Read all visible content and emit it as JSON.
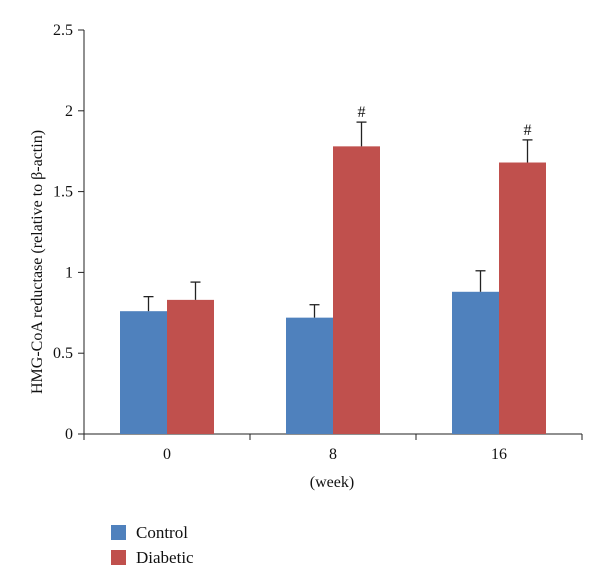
{
  "chart_data": {
    "type": "bar",
    "categories": [
      "0",
      "8",
      "16"
    ],
    "xlabel": "(week)",
    "ylabel": "HMG-CoA reductase (relative to β-actin)",
    "ylim": [
      0,
      2.5
    ],
    "yticks": [
      "0",
      "0.5",
      "1",
      "1.5",
      "2",
      "2.5"
    ],
    "series": [
      {
        "name": "Control",
        "color": "#4F81BD",
        "values": [
          0.76,
          0.72,
          0.88
        ],
        "errors": [
          0.09,
          0.08,
          0.13
        ],
        "annotations": [
          "",
          "",
          ""
        ]
      },
      {
        "name": "Diabetic",
        "color": "#C0504D",
        "values": [
          0.83,
          1.78,
          1.68
        ],
        "errors": [
          0.11,
          0.15,
          0.14
        ],
        "annotations": [
          "",
          "#",
          "#"
        ]
      }
    ]
  }
}
